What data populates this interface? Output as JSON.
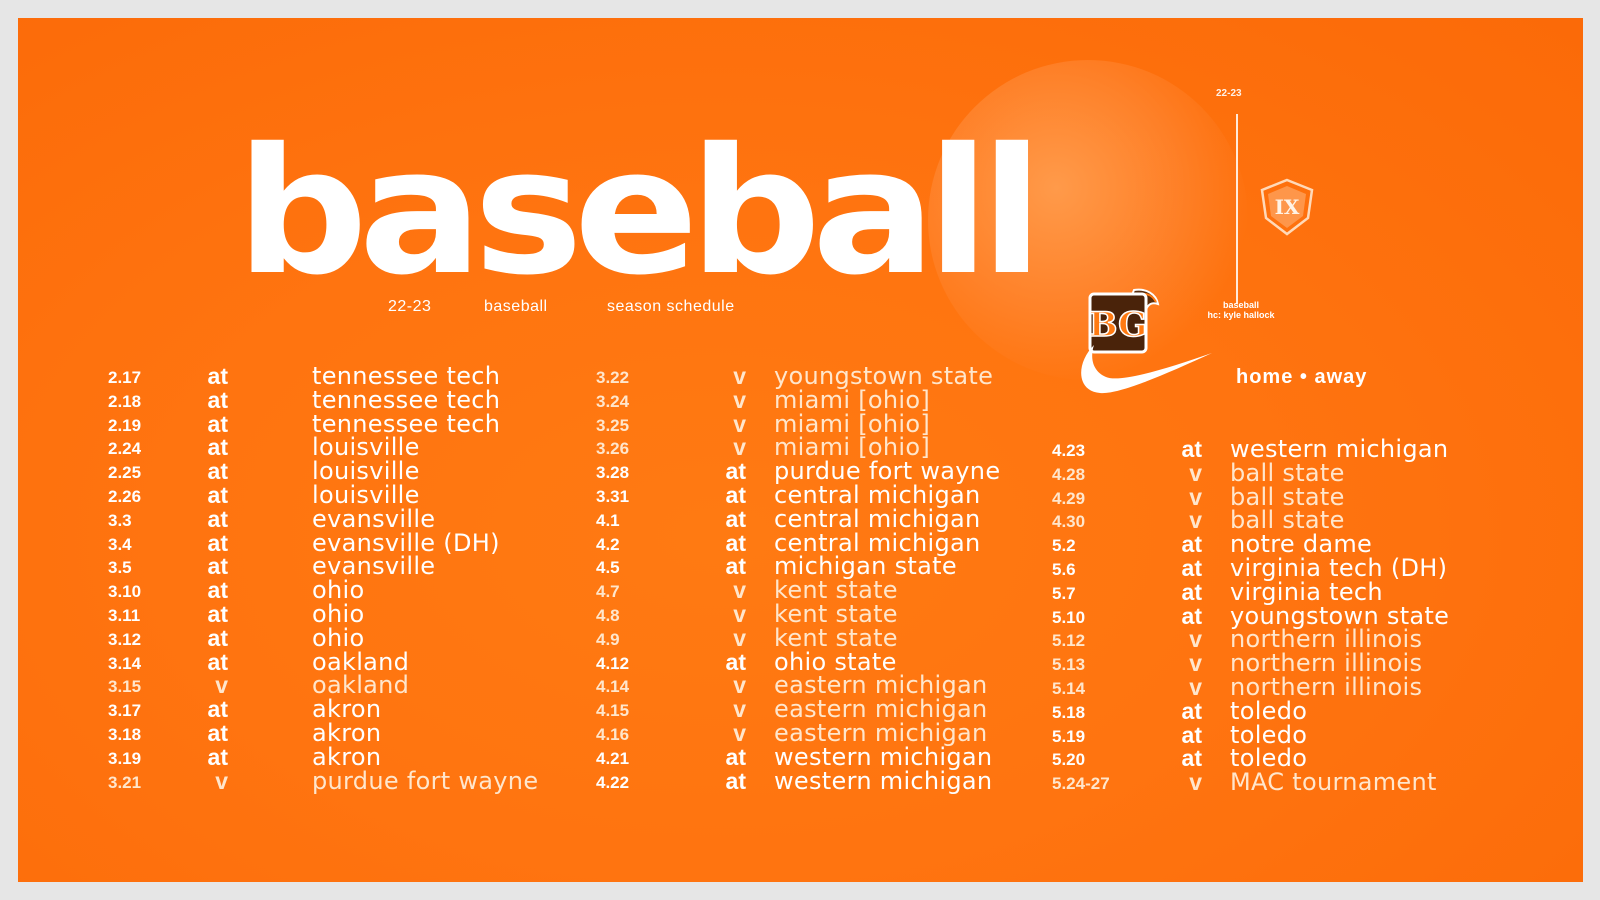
{
  "header": {
    "title": "baseball",
    "subtitle_season": "22-23",
    "subtitle_sport": "baseball",
    "subtitle_label": "season schedule"
  },
  "brand": {
    "season_small": "22-23",
    "coach_line1": "baseball",
    "coach_line2": "hc: kyle hallock",
    "legend": "home • away",
    "badge_text": "IX",
    "logo_text": "BG",
    "colors": {
      "background": "#ff7410",
      "text": "#ffffff",
      "home_text": "#ffe6cc"
    }
  },
  "schedule": {
    "column1": [
      {
        "date": "2.17",
        "ha": "at",
        "opponent": "tennessee tech"
      },
      {
        "date": "2.18",
        "ha": "at",
        "opponent": "tennessee tech"
      },
      {
        "date": "2.19",
        "ha": "at",
        "opponent": "tennessee tech"
      },
      {
        "date": "2.24",
        "ha": "at",
        "opponent": "louisville"
      },
      {
        "date": "2.25",
        "ha": "at",
        "opponent": "louisville"
      },
      {
        "date": "2.26",
        "ha": "at",
        "opponent": "louisville"
      },
      {
        "date": "3.3",
        "ha": "at",
        "opponent": "evansville"
      },
      {
        "date": "3.4",
        "ha": "at",
        "opponent": "evansville (DH)"
      },
      {
        "date": "3.5",
        "ha": "at",
        "opponent": "evansville"
      },
      {
        "date": "3.10",
        "ha": "at",
        "opponent": "ohio"
      },
      {
        "date": "3.11",
        "ha": "at",
        "opponent": "ohio"
      },
      {
        "date": "3.12",
        "ha": "at",
        "opponent": "ohio"
      },
      {
        "date": "3.14",
        "ha": "at",
        "opponent": "oakland"
      },
      {
        "date": "3.15",
        "ha": "v",
        "opponent": "oakland"
      },
      {
        "date": "3.17",
        "ha": "at",
        "opponent": "akron"
      },
      {
        "date": "3.18",
        "ha": "at",
        "opponent": "akron"
      },
      {
        "date": "3.19",
        "ha": "at",
        "opponent": "akron"
      },
      {
        "date": "3.21",
        "ha": "v",
        "opponent": "purdue fort wayne"
      }
    ],
    "column2": [
      {
        "date": "3.22",
        "ha": "v",
        "opponent": "youngstown state"
      },
      {
        "date": "3.24",
        "ha": "v",
        "opponent": "miami [ohio]"
      },
      {
        "date": "3.25",
        "ha": "v",
        "opponent": "miami [ohio]"
      },
      {
        "date": "3.26",
        "ha": "v",
        "opponent": "miami [ohio]"
      },
      {
        "date": "3.28",
        "ha": "at",
        "opponent": "purdue fort wayne"
      },
      {
        "date": "3.31",
        "ha": "at",
        "opponent": "central michigan"
      },
      {
        "date": "4.1",
        "ha": "at",
        "opponent": "central michigan"
      },
      {
        "date": "4.2",
        "ha": "at",
        "opponent": "central michigan"
      },
      {
        "date": "4.5",
        "ha": "at",
        "opponent": "michigan state"
      },
      {
        "date": "4.7",
        "ha": "v",
        "opponent": "kent state"
      },
      {
        "date": "4.8",
        "ha": "v",
        "opponent": "kent state"
      },
      {
        "date": "4.9",
        "ha": "v",
        "opponent": "kent state"
      },
      {
        "date": "4.12",
        "ha": "at",
        "opponent": "ohio state"
      },
      {
        "date": "4.14",
        "ha": "v",
        "opponent": "eastern michigan"
      },
      {
        "date": "4.15",
        "ha": "v",
        "opponent": "eastern michigan"
      },
      {
        "date": "4.16",
        "ha": "v",
        "opponent": "eastern michigan"
      },
      {
        "date": "4.21",
        "ha": "at",
        "opponent": "western michigan"
      },
      {
        "date": "4.22",
        "ha": "at",
        "opponent": "western michigan"
      }
    ],
    "column3": [
      {
        "date": "4.23",
        "ha": "at",
        "opponent": "western michigan"
      },
      {
        "date": "4.28",
        "ha": "v",
        "opponent": "ball state"
      },
      {
        "date": "4.29",
        "ha": "v",
        "opponent": "ball state"
      },
      {
        "date": "4.30",
        "ha": "v",
        "opponent": "ball state"
      },
      {
        "date": "5.2",
        "ha": "at",
        "opponent": "notre dame"
      },
      {
        "date": "5.6",
        "ha": "at",
        "opponent": "virginia tech (DH)"
      },
      {
        "date": "5.7",
        "ha": "at",
        "opponent": "virginia tech"
      },
      {
        "date": "5.10",
        "ha": "at",
        "opponent": "youngstown state"
      },
      {
        "date": "5.12",
        "ha": "v",
        "opponent": "northern illinois"
      },
      {
        "date": "5.13",
        "ha": "v",
        "opponent": "northern illinois"
      },
      {
        "date": "5.14",
        "ha": "v",
        "opponent": "northern illinois"
      },
      {
        "date": "5.18",
        "ha": "at",
        "opponent": "toledo"
      },
      {
        "date": "5.19",
        "ha": "at",
        "opponent": "toledo"
      },
      {
        "date": "5.20",
        "ha": "at",
        "opponent": "toledo"
      },
      {
        "date": "5.24-27",
        "ha": "v",
        "opponent": "MAC tournament"
      }
    ]
  }
}
